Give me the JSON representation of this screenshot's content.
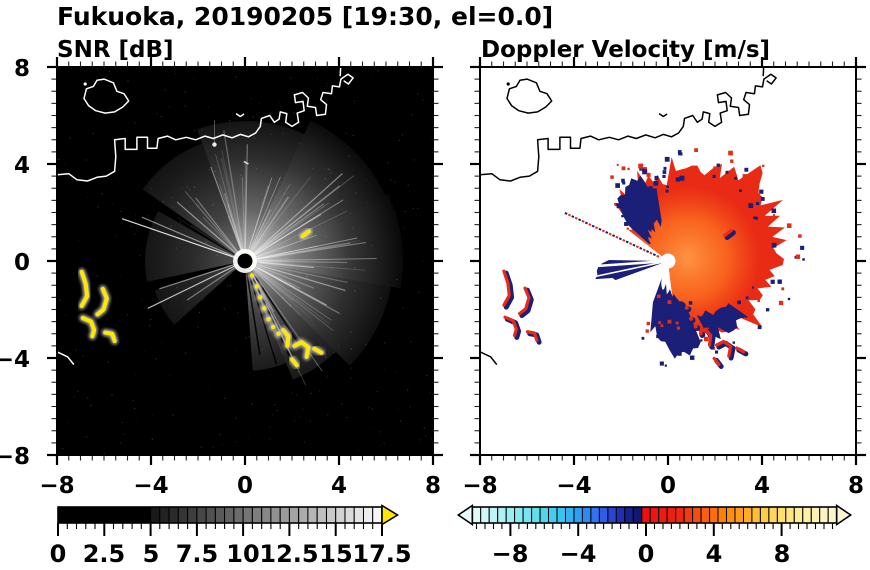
{
  "suptitle": "Fukuoka, 20190205 [19:30, el=0.0]",
  "panel_left": {
    "title": "SNR [dB]",
    "x_ticks": [
      "−8",
      "−4",
      "0",
      "4",
      "8"
    ],
    "y_ticks": [
      "8",
      "4",
      "0",
      "−4",
      "−8"
    ],
    "colorbar_ticks": [
      "0",
      "2.5",
      "5",
      "7.5",
      "10",
      "12.5",
      "15",
      "17.5"
    ]
  },
  "panel_right": {
    "title": "Doppler Velocity [m/s]",
    "x_ticks": [
      "−8",
      "−4",
      "0",
      "4",
      "8"
    ],
    "colorbar_ticks": [
      "−8",
      "−4",
      "0",
      "4",
      "8"
    ]
  },
  "colors": {
    "background": "#ffffff",
    "panel_left_bg": "#000000",
    "panel_right_bg": "#ffffff",
    "coast_left": "#ffffff",
    "coast_right": "#000000",
    "snr_echo": "#ffffff",
    "clutter_yellow": "#ffe800",
    "snr_overflow_arrow": "#ffe500",
    "vel_red": "#e92b15",
    "vel_orange": "#ff7a22",
    "vel_navy": "#1b1f78",
    "axis": "#000000"
  },
  "chart_data": [
    {
      "type": "heatmap",
      "title": "SNR [dB]",
      "suptitle": "Fukuoka, 20190205 [19:30, el=0.0]",
      "xlim": [
        -8,
        8
      ],
      "ylim": [
        -8,
        8
      ],
      "x_tick_values": [
        -8,
        -4,
        0,
        4,
        8
      ],
      "y_tick_values": [
        8,
        4,
        0,
        -4,
        -8
      ],
      "minor_tick_step": 0.5,
      "grid": false,
      "background": "black (SNR ~0 dB)",
      "colorbar": {
        "orientation": "horizontal",
        "range": [
          0,
          17.5
        ],
        "tick_values": [
          0,
          2.5,
          5,
          7.5,
          10,
          12.5,
          15,
          17.5
        ],
        "segment_step": 0.5,
        "colormap": "black below ~5 dB then grayscale ramp to white",
        "overflow": "yellow arrow at right end"
      },
      "features": [
        "radar site at origin (0,0) shown as small black disc ringed by bright echo",
        "fan of radial echo streaks (SNR ~5-12 dB) spanning azimuths ~NNW clockwise to S, fading by ~6 km range",
        "fainter echo wedges and thin bright rays toward W and SW",
        "saturated yellow (>17.5 dB) island/clutter arcs near x=-7..-5.5, y=-0.4..-3.4",
        "yellow clutter trail from (0.2,-0.3) to (3.3,-4.3) and a short dash near (2.6,1.1)",
        "white coastline across the top: island near (-6,6.8), harbor piers at (1.7..4.6, 5.5..8), islet near (-0.2,6.0), short shoreline at lower-left edge near y=-4"
      ]
    },
    {
      "type": "heatmap",
      "title": "Doppler Velocity [m/s]",
      "xlim": [
        -8,
        8
      ],
      "ylim": [
        -8,
        8
      ],
      "x_tick_values": [
        -8,
        -4,
        0,
        4,
        8
      ],
      "y_tick_values": [
        8,
        4,
        0,
        -4,
        -8
      ],
      "minor_tick_step": 0.5,
      "grid": false,
      "background": "white (no data)",
      "colorbar": {
        "orientation": "horizontal",
        "range": [
          -10.25,
          11.25
        ],
        "tick_values": [
          -8,
          -4,
          0,
          4,
          8
        ],
        "segment_step": 0.5,
        "colormap": "pale cyan -> cyan -> blue -> navy for negative; red -> orange -> yellow -> cream for positive",
        "overflow": "arrows at both ends"
      },
      "features": [
        "radar site at origin shown as white disc",
        "echo fan E/NE/SE of radar mostly positive velocity (red ~+1..+3 m/s) with orange core (~+3..+5 m/s)",
        "negative (navy ~-1..-2 m/s) patches NW of radar, a navy wedge due W, navy fringes S/SE",
        "island clutter SW drawn as paired red/navy arcs matching the yellow arcs of the SNR panel",
        "thin white shadow rays toward W and a dotted red/navy ray toward WNW",
        "black coastline identical to left panel"
      ]
    }
  ]
}
